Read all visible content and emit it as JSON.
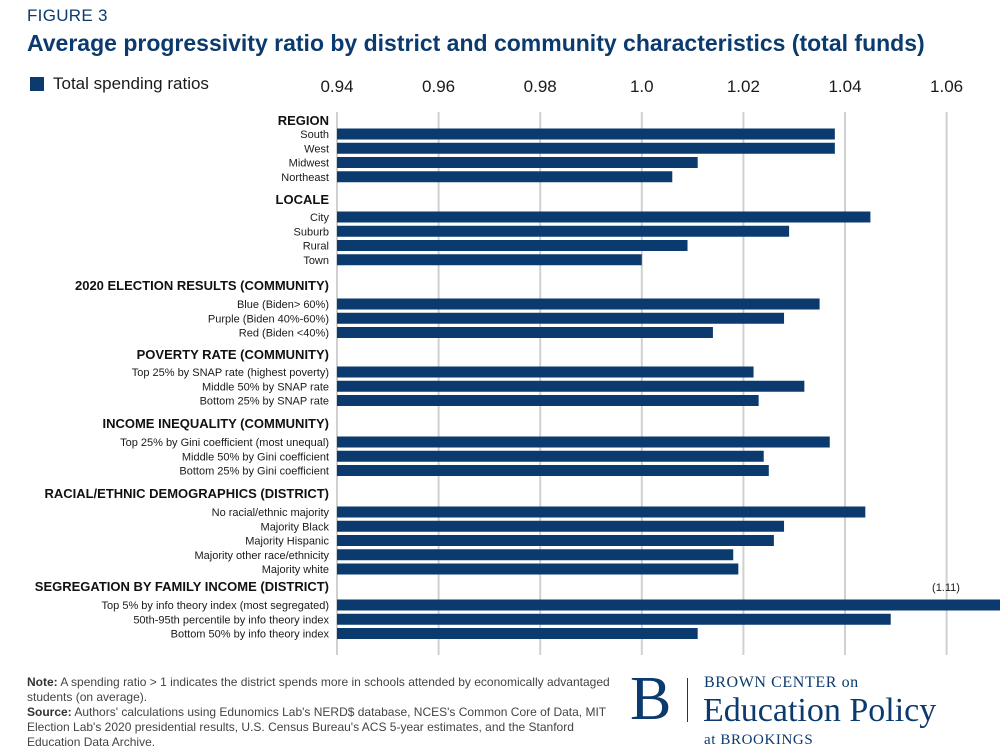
{
  "figure_label": "FIGURE 3",
  "title": "Average progressivity ratio by district and community characteristics (total funds)",
  "legend": {
    "label": "Total spending ratios",
    "color": "#0b3a6e"
  },
  "note": {
    "note_label": "Note:",
    "note_text": "A spending ratio > 1 indicates the district spends more in schools attended by economically advantaged students (on average).",
    "source_label": "Source:",
    "source_text": "Authors' calculations using Edunomics Lab's NERD$ database, NCES's Common Core of Data, MIT Election Lab's 2020 presidential results, U.S. Census Bureau's ACS 5-year estimates, and the Stanford Education Data Archive."
  },
  "logo": {
    "letter": "B",
    "line1": "BROWN CENTER on",
    "line2": "Education Policy",
    "line3": "at BROOKINGS"
  },
  "chart_data": {
    "type": "bar",
    "orientation": "horizontal",
    "xlim": [
      0.94,
      1.065
    ],
    "xticks": [
      0.94,
      0.96,
      0.98,
      1.0,
      1.02,
      1.04,
      1.06
    ],
    "tick_labels": [
      "0.94",
      "0.96",
      "0.98",
      "1.0",
      "1.02",
      "1.04",
      "1.06"
    ],
    "grid": true,
    "bar_color": "#0b3a6e",
    "groups": [
      {
        "name": "REGION",
        "items": [
          {
            "label": "South",
            "value": 1.038
          },
          {
            "label": "West",
            "value": 1.038
          },
          {
            "label": "Midwest",
            "value": 1.011
          },
          {
            "label": "Northeast",
            "value": 1.006
          }
        ]
      },
      {
        "name": "LOCALE",
        "items": [
          {
            "label": "City",
            "value": 1.045
          },
          {
            "label": "Suburb",
            "value": 1.029
          },
          {
            "label": "Rural",
            "value": 1.009
          },
          {
            "label": "Town",
            "value": 1.0
          }
        ]
      },
      {
        "name": "2020 ELECTION RESULTS (COMMUNITY)",
        "items": [
          {
            "label": "Blue (Biden> 60%)",
            "value": 1.035
          },
          {
            "label": "Purple (Biden 40%-60%)",
            "value": 1.028
          },
          {
            "label": "Red (Biden <40%)",
            "value": 1.014
          }
        ]
      },
      {
        "name": "POVERTY RATE (COMMUNITY)",
        "items": [
          {
            "label": "Top 25% by SNAP rate (highest poverty)",
            "value": 1.022
          },
          {
            "label": "Middle 50% by SNAP rate",
            "value": 1.032
          },
          {
            "label": "Bottom 25% by SNAP rate",
            "value": 1.023
          }
        ]
      },
      {
        "name": "INCOME INEQUALITY (COMMUNITY)",
        "items": [
          {
            "label": "Top 25% by Gini coefficient (most unequal)",
            "value": 1.037
          },
          {
            "label": "Middle 50% by Gini coefficient",
            "value": 1.024
          },
          {
            "label": "Bottom 25% by Gini coefficient",
            "value": 1.025
          }
        ]
      },
      {
        "name": "RACIAL/ETHNIC DEMOGRAPHICS (DISTRICT)",
        "items": [
          {
            "label": "No racial/ethnic majority",
            "value": 1.044
          },
          {
            "label": "Majority Black",
            "value": 1.028
          },
          {
            "label": "Majority Hispanic",
            "value": 1.026
          },
          {
            "label": "Majority other race/ethnicity",
            "value": 1.018
          },
          {
            "label": "Majority white",
            "value": 1.019
          }
        ]
      },
      {
        "name": "SEGREGATION BY FAMILY INCOME (DISTRICT)",
        "items": [
          {
            "label": "Top 5% by info theory index (most segregated)",
            "value": 1.11,
            "annotation": "(1.11)"
          },
          {
            "label": "50th-95th percentile by info theory index",
            "value": 1.049
          },
          {
            "label": "Bottom 50% by info theory index",
            "value": 1.011
          }
        ]
      }
    ]
  }
}
